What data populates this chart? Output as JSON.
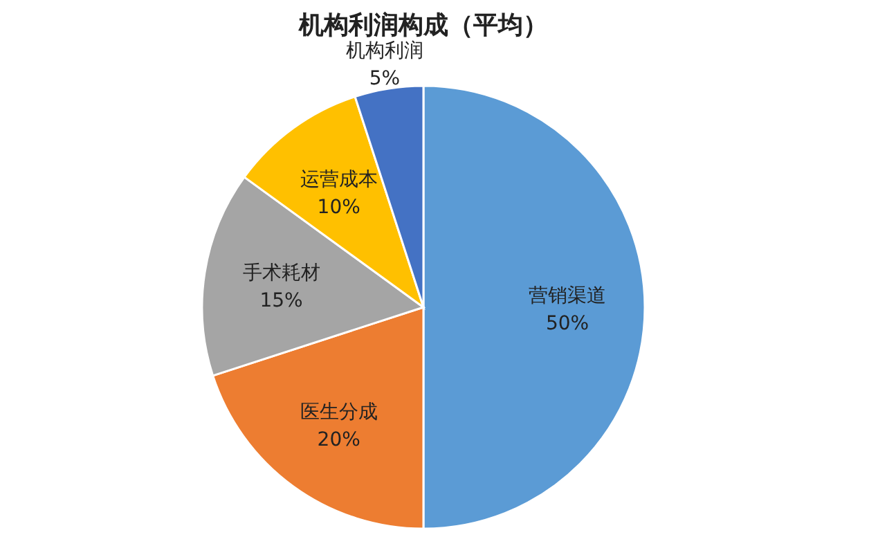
{
  "chart_data": {
    "type": "pie",
    "title": "机构利润构成（平均）",
    "categories": [
      "营销渠道",
      "医生分成",
      "手术耗材",
      "运营成本",
      "机构利润"
    ],
    "values": [
      50,
      20,
      15,
      10,
      5
    ],
    "value_labels": [
      "50%",
      "20%",
      "15%",
      "10%",
      "5%"
    ],
    "colors": [
      "#5b9bd5",
      "#ed7d31",
      "#a5a5a5",
      "#ffc000",
      "#4472c4"
    ]
  }
}
